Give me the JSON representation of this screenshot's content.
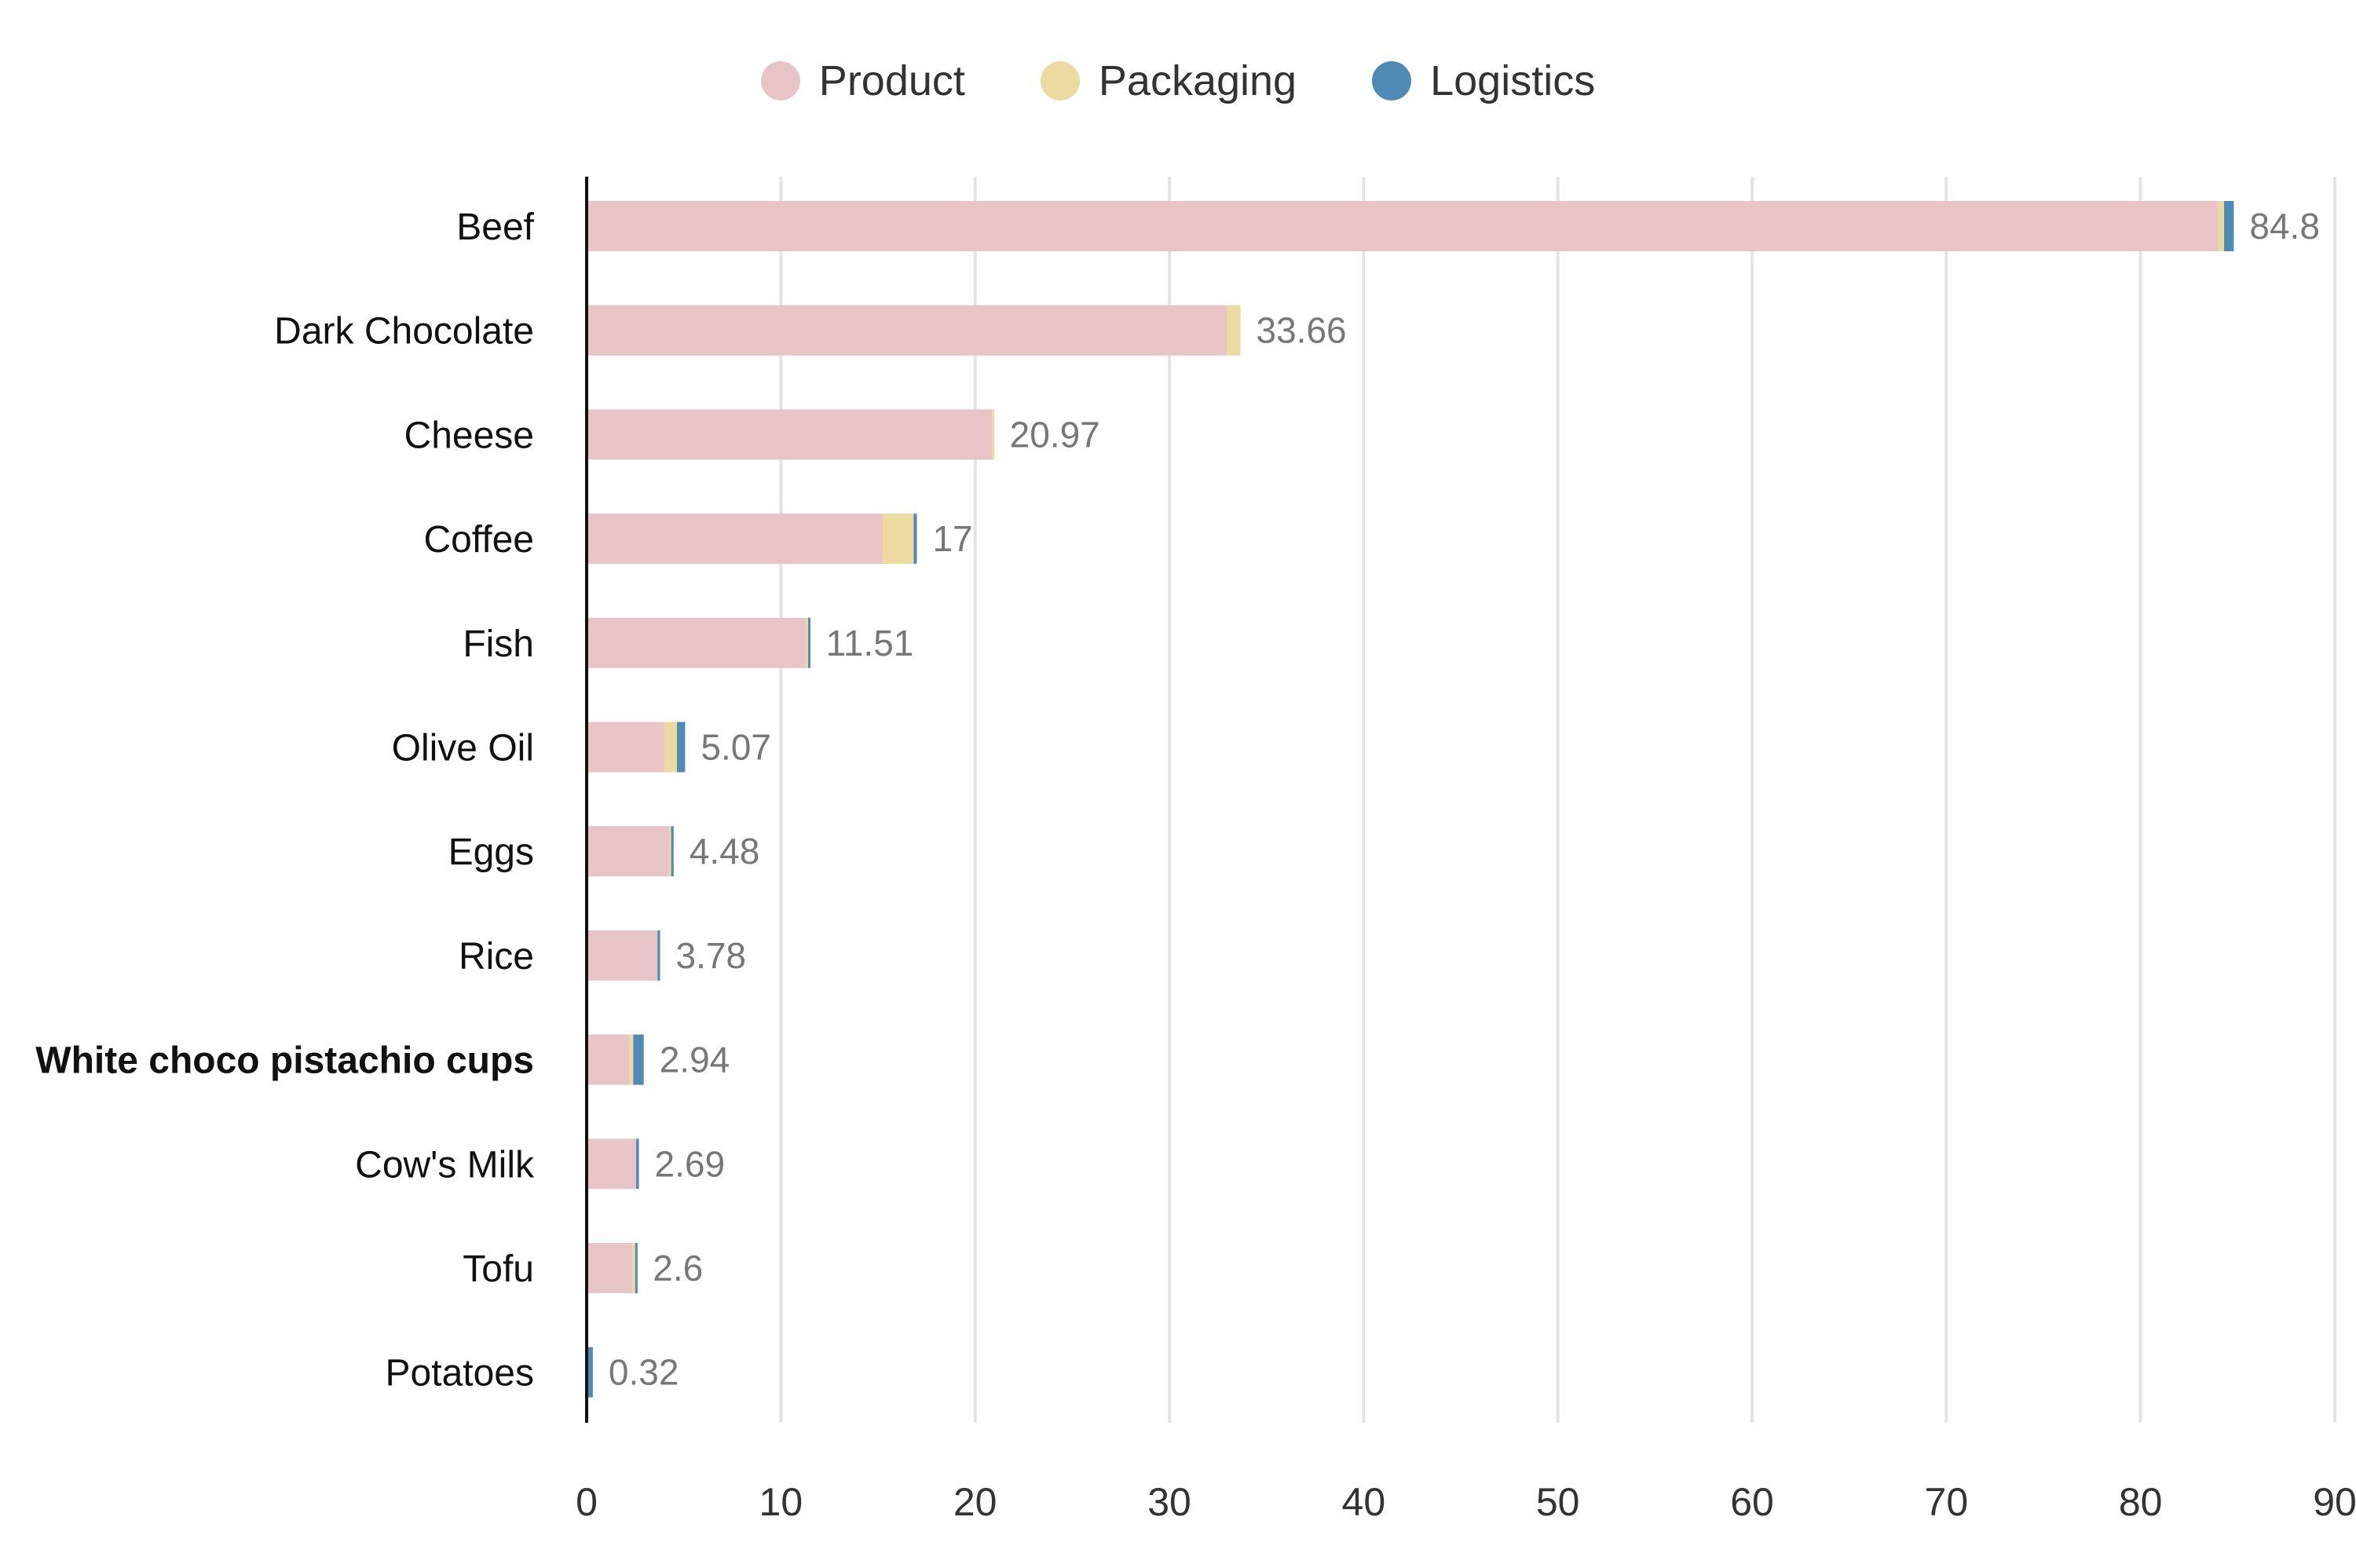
{
  "chart_data": {
    "type": "bar",
    "orientation": "horizontal",
    "stacked": true,
    "legend_position": "top",
    "grid": true,
    "xlim": [
      0,
      90
    ],
    "x_ticks": [
      0,
      10,
      20,
      30,
      40,
      50,
      60,
      70,
      80,
      90
    ],
    "categories": [
      "Beef",
      "Dark Chocolate",
      "Cheese",
      "Coffee",
      "Fish",
      "Olive Oil",
      "Eggs",
      "Rice",
      "White choco pistachio cups",
      "Cow's Milk",
      "Tofu",
      "Potatoes"
    ],
    "highlighted_category": "White choco pistachio cups",
    "totals": [
      "84.8",
      "33.66",
      "20.97",
      "17",
      "11.51",
      "5.07",
      "4.48",
      "3.78",
      "2.94",
      "2.69",
      "2.6",
      "0.32"
    ],
    "series": [
      {
        "name": "Product",
        "color": "#e8c4c7",
        "values": [
          84.0,
          32.96,
          20.87,
          15.24,
          11.3,
          4.0,
          4.25,
          3.65,
          2.2,
          2.55,
          2.35,
          0.0
        ]
      },
      {
        "name": "Packaging",
        "color": "#ecdaa0",
        "values": [
          0.3,
          0.7,
          0.1,
          1.6,
          0.1,
          0.65,
          0.1,
          0.0,
          0.2,
          0.0,
          0.15,
          0.0
        ]
      },
      {
        "name": "Logistics",
        "color": "#4f8ab5",
        "values": [
          0.5,
          0.0,
          0.0,
          0.16,
          0.11,
          0.42,
          0.13,
          0.13,
          0.54,
          0.14,
          0.1,
          0.32
        ]
      }
    ]
  }
}
